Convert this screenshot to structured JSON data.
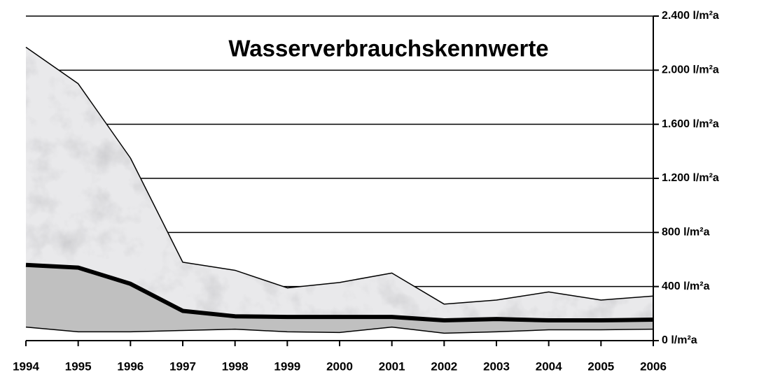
{
  "chart_data": {
    "type": "area",
    "title": "Wasserverbrauchskennwerte",
    "x": [
      1994,
      1995,
      1996,
      1997,
      1998,
      1999,
      2000,
      2001,
      2002,
      2003,
      2004,
      2005,
      2006
    ],
    "xlim": [
      1994,
      2006
    ],
    "xticks": [
      1994,
      1995,
      1996,
      1997,
      1998,
      1999,
      2000,
      2001,
      2002,
      2003,
      2004,
      2005,
      2006
    ],
    "ylim": [
      0,
      2400
    ],
    "yticks": [
      {
        "value": 0,
        "label": "0 l/m²a"
      },
      {
        "value": 400,
        "label": "400 l/m²a"
      },
      {
        "value": 800,
        "label": "800 l/m²a"
      },
      {
        "value": 1200,
        "label": "1.200 l/m²a"
      },
      {
        "value": 1600,
        "label": "1.600 l/m²a"
      },
      {
        "value": 2000,
        "label": "2.000 l/m²a"
      },
      {
        "value": 2400,
        "label": "2.400 l/m²a"
      }
    ],
    "grid": true,
    "series": [
      {
        "color": "#e9e9eb",
        "line_width": 1.5,
        "values": [
          2170,
          1900,
          1350,
          580,
          520,
          390,
          430,
          500,
          270,
          300,
          360,
          300,
          330
        ]
      },
      {
        "color": "#c0c0c0",
        "line_width": 6,
        "values": [
          560,
          540,
          420,
          220,
          180,
          175,
          175,
          175,
          150,
          160,
          150,
          150,
          155
        ]
      },
      {
        "color": "#ffffff",
        "line_width": 1.5,
        "values": [
          100,
          65,
          65,
          75,
          85,
          65,
          60,
          100,
          55,
          65,
          80,
          80,
          85
        ]
      }
    ]
  }
}
